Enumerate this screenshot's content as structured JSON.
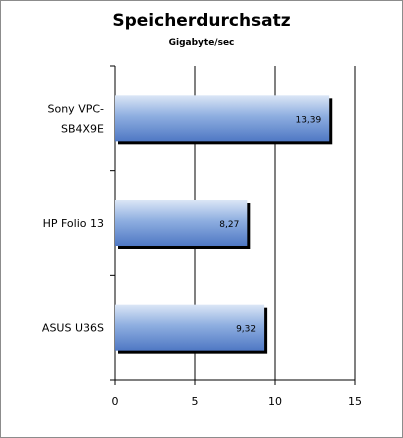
{
  "chart_data": {
    "type": "bar",
    "orientation": "horizontal",
    "title": "Speicherdurchsatz",
    "subtitle": "Gigabyte/sec",
    "categories": [
      "Sony VPC-SB4X9E",
      "HP Folio 13",
      "ASUS U36S"
    ],
    "category_lines": [
      [
        "Sony VPC-",
        "SB4X9E"
      ],
      [
        "HP Folio 13"
      ],
      [
        "ASUS U36S"
      ]
    ],
    "values": [
      13.39,
      8.27,
      9.32
    ],
    "value_labels": [
      "13,39",
      "8,27",
      "9,32"
    ],
    "xlim": [
      0,
      15
    ],
    "xticks": [
      0,
      5,
      10,
      15
    ],
    "grid": true,
    "legend": false,
    "colors": {
      "bar_light": "#dbe6f6",
      "bar_mid": "#8eaee0",
      "bar_dark": "#4f78c4",
      "shadow": "#000000",
      "grid": "#000000"
    }
  }
}
